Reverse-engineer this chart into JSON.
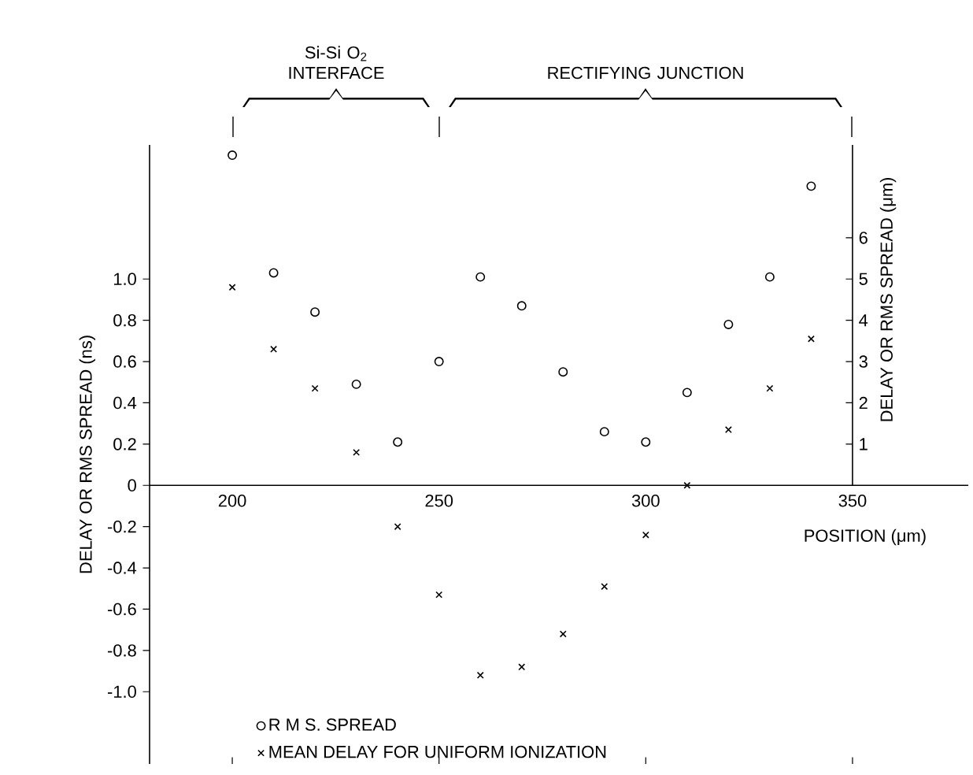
{
  "chart_data": {
    "type": "scatter",
    "xlabel": "POSITION (μm)",
    "ylabel": "DELAY OR RMS SPREAD (ns)",
    "y2label": "DELAY OR RMS SPREAD (μm)",
    "x": [
      200,
      210,
      220,
      230,
      240,
      250,
      260,
      270,
      280,
      290,
      300,
      310,
      320,
      330,
      340
    ],
    "series": [
      {
        "name": "R M S. SPREAD",
        "color": "#000000",
        "marker": "circle",
        "axis": "y2",
        "values": [
          8.0,
          5.15,
          4.2,
          2.45,
          1.05,
          3.0,
          5.05,
          4.35,
          2.75,
          1.3,
          1.05,
          2.25,
          3.9,
          5.05,
          7.25
        ]
      },
      {
        "name": "MEAN DELAY FOR UNIFORM IONIZATION",
        "color": "#000000",
        "marker": "cross",
        "values": [
          0.96,
          0.66,
          0.47,
          0.16,
          -0.2,
          -0.53,
          -0.92,
          -0.88,
          -0.72,
          -0.49,
          -0.24,
          0.0,
          0.27,
          0.47,
          0.71
        ]
      }
    ],
    "xlim": [
      180,
      378
    ],
    "ylim": [
      -1.35,
      1.65
    ],
    "y2lim": [
      -6.75,
      8.25
    ],
    "xticks": [
      200,
      250,
      300,
      350
    ],
    "yticks": [
      {
        "value": -1,
        "label": "-1.0"
      },
      -0.8,
      -0.6,
      -0.4,
      -0.2,
      0,
      0.2,
      0.4,
      0.6,
      0.8,
      {
        "value": 1,
        "label": "1.0"
      }
    ],
    "y2ticks": [
      1,
      2,
      3,
      4,
      5,
      6
    ],
    "annotations": [
      "Si-Si O$_{2}$ INTERFACE",
      "RECTIFYING JUNCTION"
    ],
    "legend": "bottom",
    "grid": false
  }
}
